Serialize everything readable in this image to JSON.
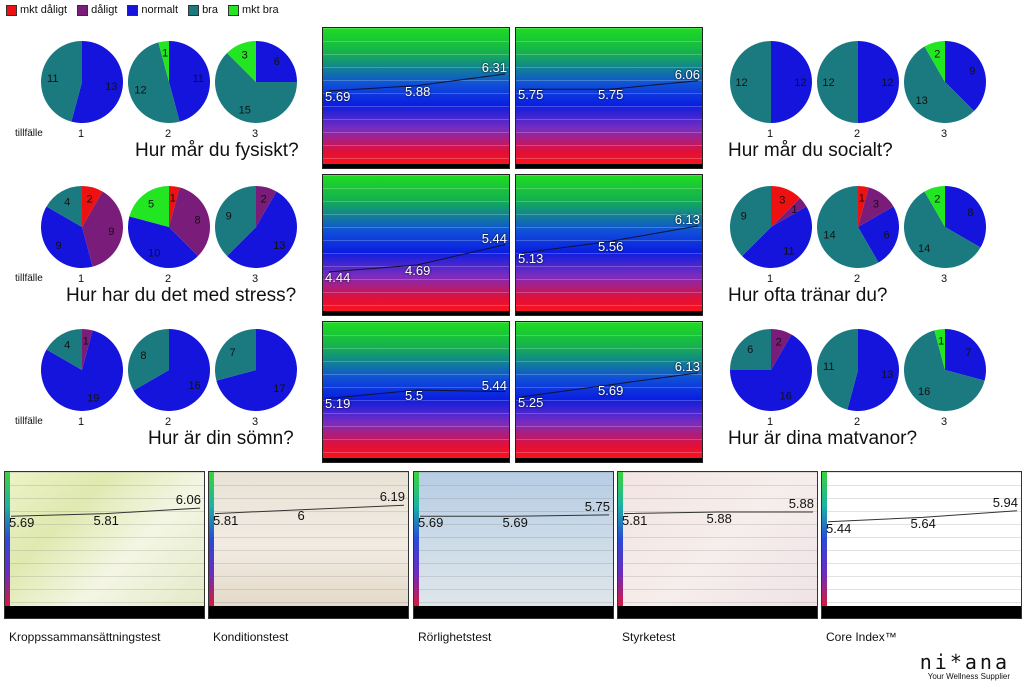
{
  "legend": [
    {
      "label": "mkt dåligt",
      "color": "#ee1111"
    },
    {
      "label": "dåligt",
      "color": "#7a1c7a"
    },
    {
      "label": "normalt",
      "color": "#1414dc"
    },
    {
      "label": "bra",
      "color": "#1a7a80"
    },
    {
      "label": "mkt bra",
      "color": "#22e622"
    }
  ],
  "occasion_label": "tillfälle",
  "occasions": [
    "1",
    "2",
    "3"
  ],
  "chart_data": [
    {
      "type": "pie",
      "question": "Hur mår du fysiskt?",
      "occasions": [
        {
          "occasion": "1",
          "slices": {
            "mkt dåligt": 0,
            "dåligt": 0,
            "normalt": 13,
            "bra": 11,
            "mkt bra": 0
          }
        },
        {
          "occasion": "2",
          "slices": {
            "mkt dåligt": 0,
            "dåligt": 0,
            "normalt": 11,
            "bra": 12,
            "mkt bra": 1
          }
        },
        {
          "occasion": "3",
          "slices": {
            "mkt dåligt": 0,
            "dåligt": 0,
            "normalt": 6,
            "bra": 15,
            "mkt bra": 3
          }
        }
      ]
    },
    {
      "type": "pie",
      "question": "Hur mår du socialt?",
      "occasions": [
        {
          "occasion": "1",
          "slices": {
            "mkt dåligt": 0,
            "dåligt": 0,
            "normalt": 12,
            "bra": 12,
            "mkt bra": 0
          }
        },
        {
          "occasion": "2",
          "slices": {
            "mkt dåligt": 0,
            "dåligt": 0,
            "normalt": 12,
            "bra": 12,
            "mkt bra": 0
          }
        },
        {
          "occasion": "3",
          "slices": {
            "mkt dåligt": 0,
            "dåligt": 0,
            "normalt": 9,
            "bra": 13,
            "mkt bra": 2
          }
        }
      ]
    },
    {
      "type": "pie",
      "question": "Hur har du det med stress?",
      "occasions": [
        {
          "occasion": "1",
          "slices": {
            "mkt dåligt": 2,
            "dåligt": 9,
            "normalt": 9,
            "bra": 4,
            "mkt bra": 0
          }
        },
        {
          "occasion": "2",
          "slices": {
            "mkt dåligt": 1,
            "dåligt": 8,
            "normalt": 10,
            "bra": 0,
            "mkt bra": 5
          }
        },
        {
          "occasion": "3",
          "slices": {
            "mkt dåligt": 0,
            "dåligt": 2,
            "normalt": 13,
            "bra": 9,
            "mkt bra": 0
          }
        }
      ]
    },
    {
      "type": "pie",
      "question": "Hur ofta tränar du?",
      "occasions": [
        {
          "occasion": "1",
          "slices": {
            "mkt dåligt": 3,
            "dåligt": 1,
            "normalt": 11,
            "bra": 9,
            "mkt bra": 0
          }
        },
        {
          "occasion": "2",
          "slices": {
            "mkt dåligt": 1,
            "dåligt": 3,
            "normalt": 6,
            "bra": 14,
            "mkt bra": 0
          }
        },
        {
          "occasion": "3",
          "slices": {
            "mkt dåligt": 0,
            "dåligt": 0,
            "normalt": 8,
            "bra": 14,
            "mkt bra": 2
          }
        }
      ]
    },
    {
      "type": "pie",
      "question": "Hur är din sömn?",
      "occasions": [
        {
          "occasion": "1",
          "slices": {
            "mkt dåligt": 0,
            "dåligt": 1,
            "normalt": 19,
            "bra": 4,
            "mkt bra": 0
          }
        },
        {
          "occasion": "2",
          "slices": {
            "mkt dåligt": 0,
            "dåligt": 0,
            "normalt": 16,
            "bra": 8,
            "mkt bra": 0
          }
        },
        {
          "occasion": "3",
          "slices": {
            "mkt dåligt": 0,
            "dåligt": 0,
            "normalt": 17,
            "bra": 7,
            "mkt bra": 0
          }
        }
      ]
    },
    {
      "type": "pie",
      "question": "Hur är dina matvanor?",
      "occasions": [
        {
          "occasion": "1",
          "slices": {
            "mkt dåligt": 0,
            "dåligt": 2,
            "normalt": 16,
            "bra": 6,
            "mkt bra": 0
          }
        },
        {
          "occasion": "2",
          "slices": {
            "mkt dåligt": 0,
            "dåligt": 0,
            "normalt": 13,
            "bra": 11,
            "mkt bra": 0
          }
        },
        {
          "occasion": "3",
          "slices": {
            "mkt dåligt": 0,
            "dåligt": 0,
            "normalt": 7,
            "bra": 16,
            "mkt bra": 1
          }
        }
      ]
    },
    {
      "type": "line",
      "name": "gradient-1",
      "values": [
        "5.69",
        "5.88",
        "6.31"
      ]
    },
    {
      "type": "line",
      "name": "gradient-2",
      "values": [
        "5.75",
        "5.75",
        "6.06"
      ]
    },
    {
      "type": "line",
      "name": "gradient-3",
      "values": [
        "4.44",
        "4.69",
        "5.44"
      ]
    },
    {
      "type": "line",
      "name": "gradient-4",
      "values": [
        "5.13",
        "5.56",
        "6.13"
      ]
    },
    {
      "type": "line",
      "name": "gradient-5",
      "values": [
        "5.19",
        "5.5",
        "5.44"
      ]
    },
    {
      "type": "line",
      "name": "gradient-6",
      "values": [
        "5.25",
        "5.69",
        "6.13"
      ]
    },
    {
      "type": "line",
      "name": "Kroppssammansättningstest",
      "values": [
        "5.69",
        "5.81",
        "6.06"
      ]
    },
    {
      "type": "line",
      "name": "Konditionstest",
      "values": [
        "5.81",
        "6",
        "6.19"
      ]
    },
    {
      "type": "line",
      "name": "Rörlighetstest",
      "values": [
        "5.69",
        "5.69",
        "5.75"
      ]
    },
    {
      "type": "line",
      "name": "Styrketest",
      "values": [
        "5.81",
        "5.88",
        "5.88"
      ]
    },
    {
      "type": "line",
      "name": "Core Index™",
      "values": [
        "5.44",
        "5.64",
        "5.94"
      ]
    }
  ],
  "brand": {
    "logo": "ni*ana",
    "tagline": "Your Wellness Supplier"
  }
}
